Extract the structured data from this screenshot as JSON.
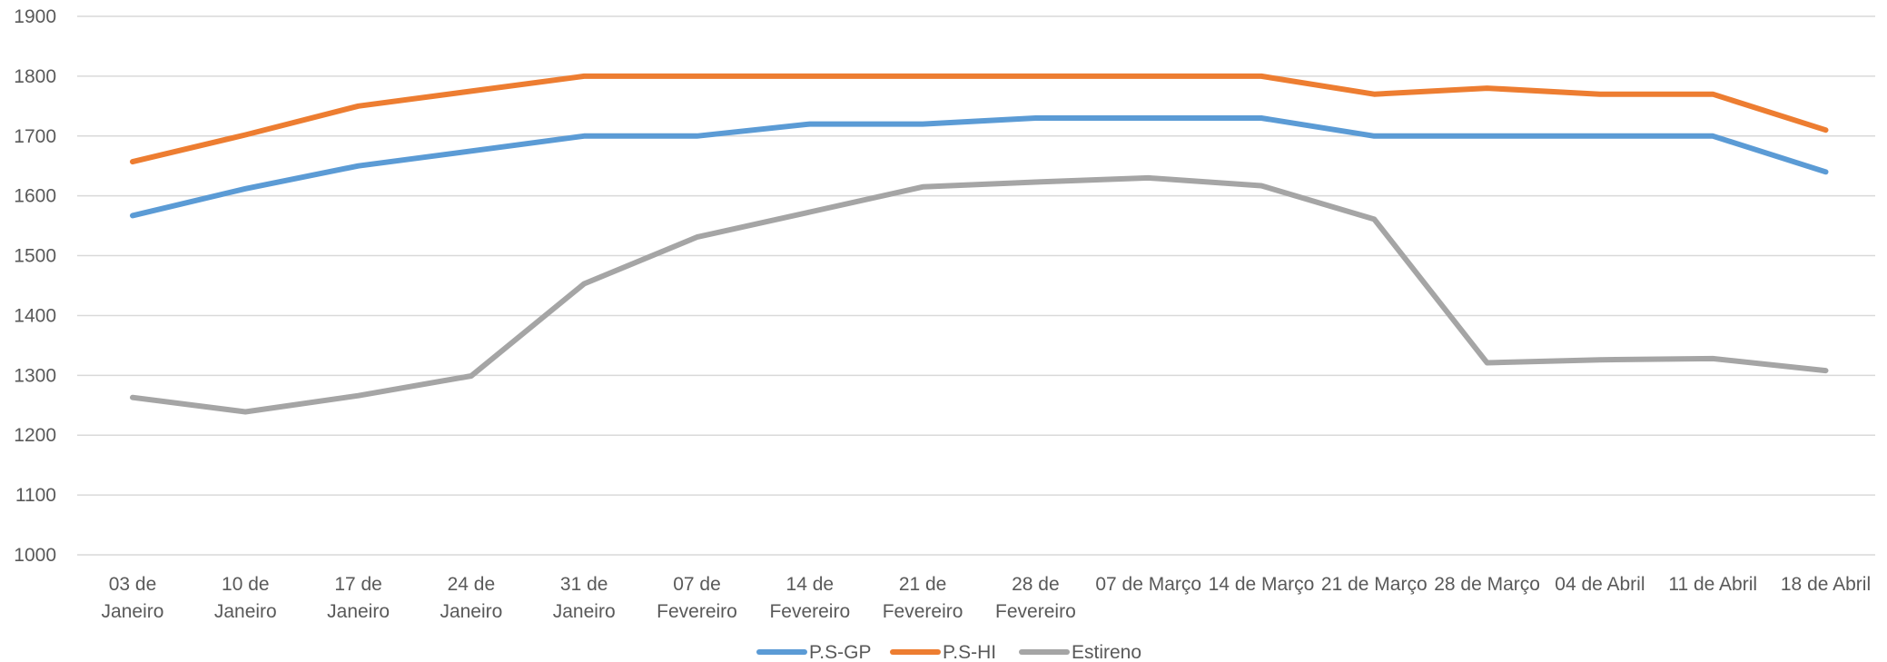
{
  "chart_data": {
    "type": "line",
    "title": "",
    "xlabel": "",
    "ylabel": "",
    "ylim": [
      1000,
      1900
    ],
    "y_ticks": [
      1000,
      1100,
      1200,
      1300,
      1400,
      1500,
      1600,
      1700,
      1800,
      1900
    ],
    "grid": true,
    "legend_position": "bottom",
    "categories": [
      [
        "03 de",
        "Janeiro"
      ],
      [
        "10 de",
        "Janeiro"
      ],
      [
        "17 de",
        "Janeiro"
      ],
      [
        "24 de",
        "Janeiro"
      ],
      [
        "31 de",
        "Janeiro"
      ],
      [
        "07 de",
        "Fevereiro"
      ],
      [
        "14 de",
        "Fevereiro"
      ],
      [
        "21 de",
        "Fevereiro"
      ],
      [
        "28 de",
        "Fevereiro"
      ],
      [
        "07 de Março"
      ],
      [
        "14 de Março"
      ],
      [
        "21 de Março"
      ],
      [
        "28 de Março"
      ],
      [
        "04 de Abril"
      ],
      [
        "11 de Abril"
      ],
      [
        "18 de Abril"
      ]
    ],
    "series": [
      {
        "name": "P.S-GP",
        "color": "#5B9BD5",
        "values": [
          1567,
          1612,
          1650,
          1675,
          1700,
          1700,
          1720,
          1720,
          1730,
          1730,
          1730,
          1700,
          1700,
          1700,
          1700,
          1640
        ]
      },
      {
        "name": "P.S-HI",
        "color": "#ED7D31",
        "values": [
          1657,
          1702,
          1750,
          1775,
          1800,
          1800,
          1800,
          1800,
          1800,
          1800,
          1800,
          1770,
          1780,
          1770,
          1770,
          1710
        ]
      },
      {
        "name": "Estireno",
        "color": "#A5A5A5",
        "values": [
          1263,
          1239,
          1266,
          1299,
          1453,
          1531,
          1573,
          1615,
          1623,
          1630,
          1617,
          1561,
          1321,
          1326,
          1328,
          1308
        ]
      }
    ]
  }
}
